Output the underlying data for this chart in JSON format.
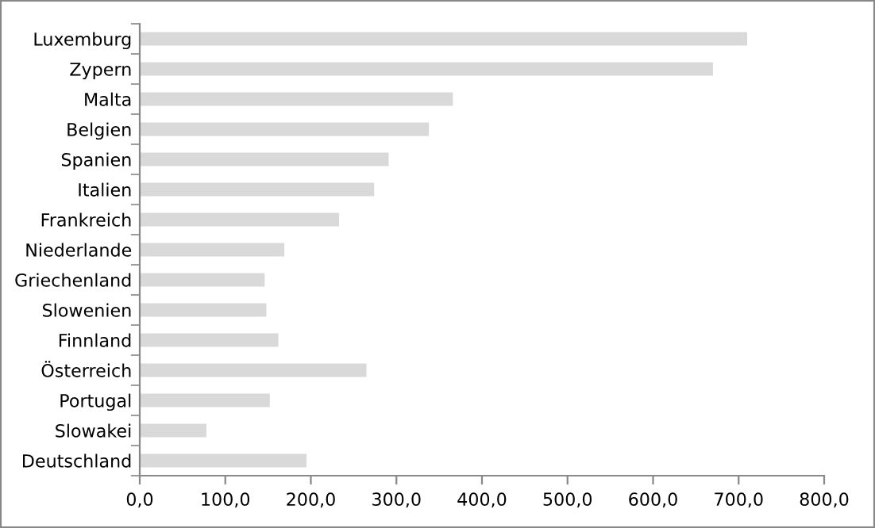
{
  "chart_data": {
    "type": "bar",
    "orientation": "horizontal",
    "categories": [
      "Luxemburg",
      "Zypern",
      "Malta",
      "Belgien",
      "Spanien",
      "Italien",
      "Frankreich",
      "Niederlande",
      "Griechenland",
      "Slowenien",
      "Finnland",
      "Österreich",
      "Portugal",
      "Slowakei",
      "Deutschland"
    ],
    "values": [
      710,
      670,
      366,
      338,
      291,
      274,
      233,
      169,
      146,
      148,
      162,
      265,
      152,
      78,
      195
    ],
    "color": "#d9d9d9",
    "xlim": [
      0,
      800
    ],
    "xticks": [
      {
        "value": 0,
        "label": "0,0"
      },
      {
        "value": 100,
        "label": "100,0"
      },
      {
        "value": 200,
        "label": "200,0"
      },
      {
        "value": 300,
        "label": "300,0"
      },
      {
        "value": 400,
        "label": "400,0"
      },
      {
        "value": 500,
        "label": "500,0"
      },
      {
        "value": 600,
        "label": "600,0"
      },
      {
        "value": 700,
        "label": "700,0"
      },
      {
        "value": 800,
        "label": "800,0"
      }
    ],
    "grid": false
  }
}
